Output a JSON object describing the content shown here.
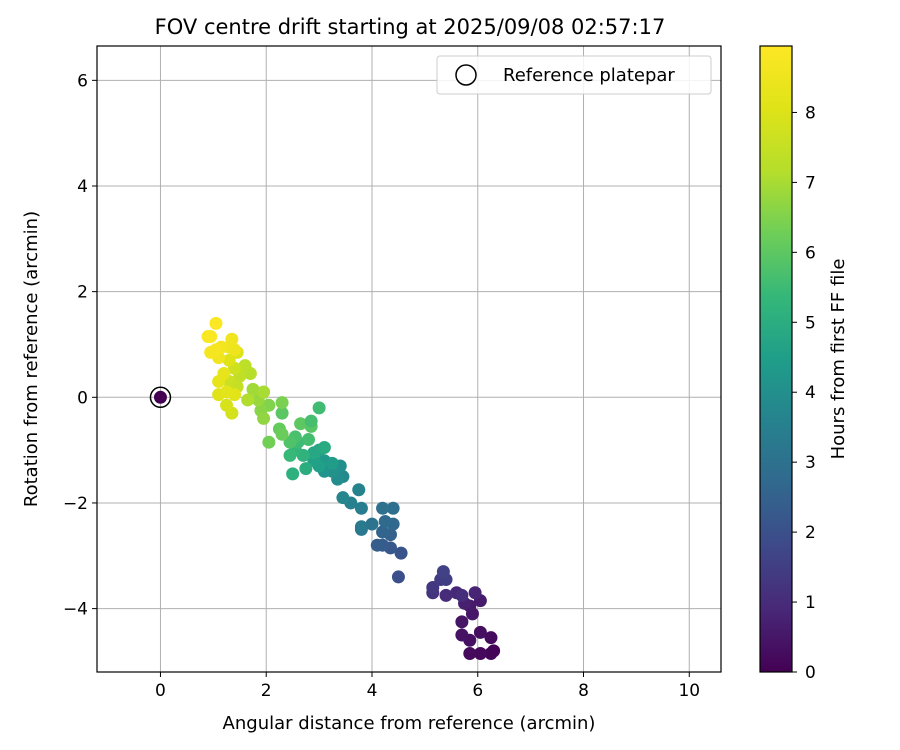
{
  "chart_data": {
    "type": "scatter",
    "title": "FOV centre drift starting at 2025/09/08 02:57:17",
    "xlabel": "Angular distance from reference (arcmin)",
    "ylabel": "Rotation from reference (arcmin)",
    "colorbar_label": "Hours from first FF file",
    "xlim": [
      -1.2,
      10.6
    ],
    "ylim": [
      -5.2,
      6.65
    ],
    "x_ticks": [
      0,
      2,
      4,
      6,
      8,
      10
    ],
    "y_ticks": [
      -4,
      -2,
      0,
      2,
      4,
      6
    ],
    "colorbar_range": [
      0,
      8.95
    ],
    "colorbar_ticks": [
      0,
      1,
      2,
      3,
      4,
      5,
      6,
      7,
      8
    ],
    "colormap": "viridis",
    "grid": true,
    "legend_position": "top-right",
    "reference": {
      "label": "Reference platepar",
      "x": 0,
      "y": 0,
      "hours": 0
    },
    "points": [
      {
        "x": 6.3,
        "y": -4.8,
        "h": 0.05
      },
      {
        "x": 6.25,
        "y": -4.85,
        "h": 0.1
      },
      {
        "x": 6.05,
        "y": -4.85,
        "h": 0.15
      },
      {
        "x": 5.85,
        "y": -4.85,
        "h": 0.2
      },
      {
        "x": 6.25,
        "y": -4.55,
        "h": 0.25
      },
      {
        "x": 6.05,
        "y": -4.45,
        "h": 0.3
      },
      {
        "x": 5.85,
        "y": -4.6,
        "h": 0.35
      },
      {
        "x": 5.7,
        "y": -4.5,
        "h": 0.4
      },
      {
        "x": 5.7,
        "y": -4.25,
        "h": 0.45
      },
      {
        "x": 5.9,
        "y": -4.1,
        "h": 0.5
      },
      {
        "x": 5.85,
        "y": -3.95,
        "h": 0.55
      },
      {
        "x": 6.05,
        "y": -3.85,
        "h": 0.6
      },
      {
        "x": 5.75,
        "y": -3.9,
        "h": 0.7
      },
      {
        "x": 5.95,
        "y": -3.7,
        "h": 0.8
      },
      {
        "x": 5.6,
        "y": -3.7,
        "h": 0.9
      },
      {
        "x": 5.4,
        "y": -3.75,
        "h": 1.0
      },
      {
        "x": 5.7,
        "y": -3.75,
        "h": 1.05
      },
      {
        "x": 5.15,
        "y": -3.7,
        "h": 1.2
      },
      {
        "x": 5.15,
        "y": -3.6,
        "h": 1.3
      },
      {
        "x": 5.3,
        "y": -3.45,
        "h": 1.4
      },
      {
        "x": 5.4,
        "y": -3.45,
        "h": 1.5
      },
      {
        "x": 5.35,
        "y": -3.3,
        "h": 1.6
      },
      {
        "x": 4.5,
        "y": -3.4,
        "h": 2.0
      },
      {
        "x": 4.55,
        "y": -2.95,
        "h": 2.1
      },
      {
        "x": 4.35,
        "y": -2.85,
        "h": 2.2
      },
      {
        "x": 4.2,
        "y": -2.8,
        "h": 2.3
      },
      {
        "x": 4.1,
        "y": -2.8,
        "h": 2.4
      },
      {
        "x": 4.35,
        "y": -2.6,
        "h": 2.5
      },
      {
        "x": 4.2,
        "y": -2.55,
        "h": 2.6
      },
      {
        "x": 4.4,
        "y": -2.4,
        "h": 2.7
      },
      {
        "x": 4.25,
        "y": -2.35,
        "h": 2.8
      },
      {
        "x": 4.4,
        "y": -2.1,
        "h": 2.9
      },
      {
        "x": 4.2,
        "y": -2.1,
        "h": 3.0
      },
      {
        "x": 4.0,
        "y": -2.4,
        "h": 3.1
      },
      {
        "x": 3.8,
        "y": -2.5,
        "h": 3.2
      },
      {
        "x": 3.8,
        "y": -2.45,
        "h": 3.3
      },
      {
        "x": 3.8,
        "y": -2.1,
        "h": 3.4
      },
      {
        "x": 3.6,
        "y": -2.0,
        "h": 3.5
      },
      {
        "x": 3.75,
        "y": -1.75,
        "h": 3.6
      },
      {
        "x": 3.45,
        "y": -1.9,
        "h": 3.7
      },
      {
        "x": 3.45,
        "y": -1.5,
        "h": 3.8
      },
      {
        "x": 3.35,
        "y": -1.55,
        "h": 3.9
      },
      {
        "x": 3.4,
        "y": -1.3,
        "h": 4.0
      },
      {
        "x": 3.25,
        "y": -1.4,
        "h": 4.1
      },
      {
        "x": 3.1,
        "y": -1.4,
        "h": 4.2
      },
      {
        "x": 3.1,
        "y": -1.2,
        "h": 4.3
      },
      {
        "x": 3.25,
        "y": -1.25,
        "h": 4.4
      },
      {
        "x": 3.0,
        "y": -1.3,
        "h": 4.5
      },
      {
        "x": 2.9,
        "y": -1.2,
        "h": 4.6
      },
      {
        "x": 3.0,
        "y": -1.0,
        "h": 4.7
      },
      {
        "x": 2.9,
        "y": -1.05,
        "h": 4.8
      },
      {
        "x": 3.1,
        "y": -0.95,
        "h": 4.9
      },
      {
        "x": 2.75,
        "y": -1.35,
        "h": 5.0
      },
      {
        "x": 2.5,
        "y": -1.45,
        "h": 5.1
      },
      {
        "x": 2.7,
        "y": -1.1,
        "h": 5.2
      },
      {
        "x": 2.55,
        "y": -1.0,
        "h": 5.3
      },
      {
        "x": 2.45,
        "y": -1.1,
        "h": 5.4
      },
      {
        "x": 2.6,
        "y": -0.85,
        "h": 5.5
      },
      {
        "x": 2.8,
        "y": -0.8,
        "h": 5.6
      },
      {
        "x": 2.55,
        "y": -0.75,
        "h": 5.7
      },
      {
        "x": 2.45,
        "y": -0.85,
        "h": 5.8
      },
      {
        "x": 2.85,
        "y": -0.55,
        "h": 5.9
      },
      {
        "x": 2.65,
        "y": -0.5,
        "h": 6.0
      },
      {
        "x": 3.0,
        "y": -0.2,
        "h": 5.55
      },
      {
        "x": 2.85,
        "y": -0.45,
        "h": 5.65
      },
      {
        "x": 2.3,
        "y": -0.3,
        "h": 5.95
      },
      {
        "x": 2.25,
        "y": -0.6,
        "h": 6.1
      },
      {
        "x": 2.3,
        "y": -0.7,
        "h": 6.2
      },
      {
        "x": 2.05,
        "y": -0.85,
        "h": 6.3
      },
      {
        "x": 2.3,
        "y": -0.1,
        "h": 6.4
      },
      {
        "x": 2.05,
        "y": -0.15,
        "h": 6.5
      },
      {
        "x": 1.9,
        "y": -0.25,
        "h": 6.6
      },
      {
        "x": 1.95,
        "y": -0.4,
        "h": 6.7
      },
      {
        "x": 1.85,
        "y": -0.05,
        "h": 6.8
      },
      {
        "x": 1.75,
        "y": 0.15,
        "h": 6.9
      },
      {
        "x": 1.95,
        "y": 0.1,
        "h": 7.0
      },
      {
        "x": 1.65,
        "y": -0.05,
        "h": 7.1
      },
      {
        "x": 1.7,
        "y": 0.45,
        "h": 7.2
      },
      {
        "x": 1.6,
        "y": 0.6,
        "h": 7.3
      },
      {
        "x": 1.5,
        "y": 0.4,
        "h": 7.4
      },
      {
        "x": 1.45,
        "y": 0.2,
        "h": 7.5
      },
      {
        "x": 1.3,
        "y": 0.3,
        "h": 7.6
      },
      {
        "x": 1.4,
        "y": 0.55,
        "h": 7.7
      },
      {
        "x": 1.35,
        "y": -0.3,
        "h": 7.8
      },
      {
        "x": 1.25,
        "y": -0.15,
        "h": 7.9
      },
      {
        "x": 1.45,
        "y": 0.85,
        "h": 8.0
      },
      {
        "x": 1.3,
        "y": 0.7,
        "h": 8.05
      },
      {
        "x": 1.1,
        "y": 0.05,
        "h": 8.1
      },
      {
        "x": 1.4,
        "y": 0.05,
        "h": 8.15
      },
      {
        "x": 1.25,
        "y": 0.1,
        "h": 8.2
      },
      {
        "x": 1.1,
        "y": 0.3,
        "h": 8.25
      },
      {
        "x": 1.2,
        "y": 0.45,
        "h": 8.3
      },
      {
        "x": 1.3,
        "y": 0.95,
        "h": 8.4
      },
      {
        "x": 1.4,
        "y": 0.9,
        "h": 8.5
      },
      {
        "x": 1.35,
        "y": 1.1,
        "h": 8.55
      },
      {
        "x": 1.1,
        "y": 0.75,
        "h": 8.6
      },
      {
        "x": 1.15,
        "y": 0.95,
        "h": 8.65
      },
      {
        "x": 0.95,
        "y": 0.85,
        "h": 8.7
      },
      {
        "x": 1.05,
        "y": 0.9,
        "h": 8.75
      },
      {
        "x": 0.9,
        "y": 1.15,
        "h": 8.8
      },
      {
        "x": 0.95,
        "y": 1.15,
        "h": 8.85
      },
      {
        "x": 1.05,
        "y": 1.4,
        "h": 8.9
      }
    ]
  }
}
